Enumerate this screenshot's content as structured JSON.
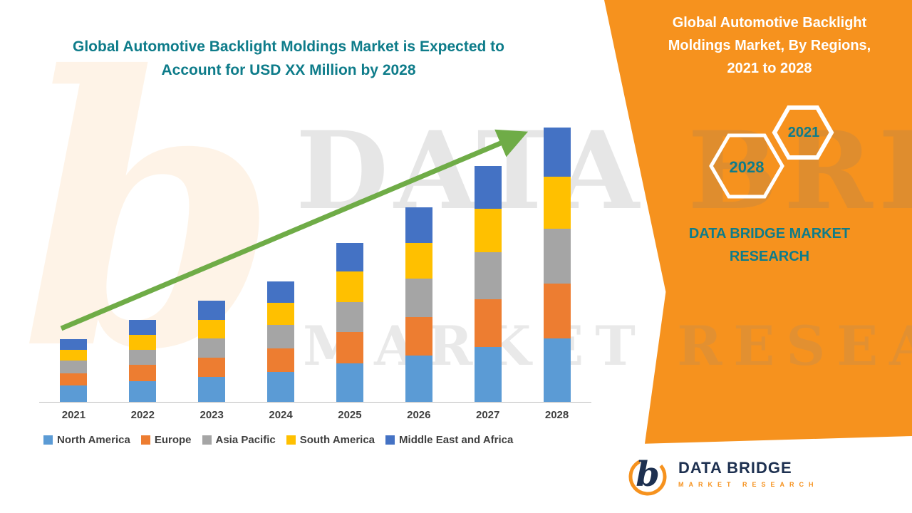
{
  "left_panel": {
    "title": "Global Automotive Backlight Moldings Market is Expected to Account for USD XX Million by 2028"
  },
  "right_panel": {
    "title": "Global Automotive Backlight Moldings Market, By Regions, 2021 to 2028",
    "hexagon_front_label": "2021",
    "hexagon_back_label": "2028",
    "brand_text": "DATA BRIDGE MARKET RESEARCH"
  },
  "watermark": {
    "letter": "b",
    "line1": "DATA BRIDGE",
    "line2": "MARKET RESEARCH"
  },
  "footer_logo": {
    "brand": "DATA BRIDGE",
    "sub": "MARKET RESEARCH",
    "mark_letter": "b"
  },
  "colors": {
    "panel_orange": "#F6921E",
    "teal": "#0E7C8A",
    "navy": "#1D3050",
    "axis_text": "#404040"
  },
  "chart_data": {
    "type": "bar",
    "stacked": true,
    "title": "Global Automotive Backlight Moldings Market is Expected to Account for USD XX Million by 2028",
    "categories": [
      "2021",
      "2022",
      "2023",
      "2024",
      "2025",
      "2026",
      "2027",
      "2028"
    ],
    "series": [
      {
        "name": "North America",
        "color": "#5B9BD5",
        "values": [
          6,
          7.5,
          9,
          11,
          14,
          17,
          20,
          23
        ]
      },
      {
        "name": "Europe",
        "color": "#ED7D31",
        "values": [
          4.5,
          6,
          7,
          8.5,
          11.5,
          14,
          17.5,
          20
        ]
      },
      {
        "name": "Asia Pacific",
        "color": "#A5A5A5",
        "values": [
          4.5,
          5.5,
          7,
          8.5,
          11,
          14,
          17,
          20
        ]
      },
      {
        "name": "South America",
        "color": "#FFC000",
        "values": [
          4,
          5.5,
          7,
          8,
          11,
          13,
          16,
          19
        ]
      },
      {
        "name": "Middle East and Africa",
        "color": "#4472C4",
        "values": [
          4,
          5.5,
          7,
          8,
          10.5,
          13,
          15.5,
          18
        ]
      }
    ],
    "totals": [
      23,
      30,
      37,
      44,
      58,
      71,
      86,
      100
    ],
    "xlabel": "",
    "ylabel": "",
    "ylim": [
      0,
      100
    ],
    "y_axis_visible": false,
    "grid": false,
    "legend_position": "bottom",
    "trend_arrow": true,
    "trend_color": "#6FAC47",
    "note": "values are relative index estimates; actual figures shown as USD XX Million placeholder"
  }
}
